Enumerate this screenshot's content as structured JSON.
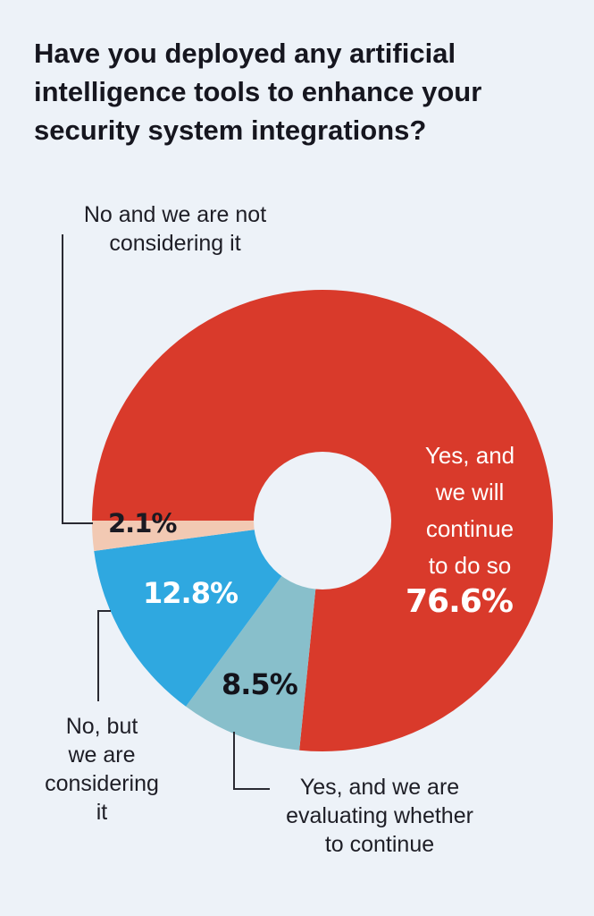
{
  "chart_data": {
    "type": "pie",
    "variant": "donut",
    "title": "Have you deployed any artificial intelligence tools to enhance your security system integrations?",
    "title_lines": [
      "Have you deployed any artificial",
      "intelligence tools to enhance your",
      "security system integrations?"
    ],
    "slices": [
      {
        "label": "Yes, and we will continue to do so",
        "label_lines": [
          "Yes, and",
          "we will",
          "continue",
          "to do so"
        ],
        "value": 76.6,
        "value_label": "76.6%",
        "color": "#d93a2b"
      },
      {
        "label": "Yes, and we are evaluating whether to continue",
        "label_lines": [
          "Yes, and we are",
          "evaluating whether",
          "to continue"
        ],
        "value": 8.5,
        "value_label": "8.5%",
        "color": "#88bfcb"
      },
      {
        "label": "No, but we are considering it",
        "label_lines": [
          "No, but",
          "we are",
          "considering",
          "it"
        ],
        "value": 12.8,
        "value_label": "12.8%",
        "color": "#2fa8e0"
      },
      {
        "label": "No and we are not considering it",
        "label_lines": [
          "No and we are not",
          "considering it"
        ],
        "value": 2.1,
        "value_label": "2.1%",
        "color": "#f2c9b3"
      }
    ],
    "start_direction": "clockwise from 9 o'clock, largest slice first"
  },
  "colors": {
    "background": "#edf2f8",
    "text": "#16161f",
    "leader_line": "#2a2a32"
  }
}
